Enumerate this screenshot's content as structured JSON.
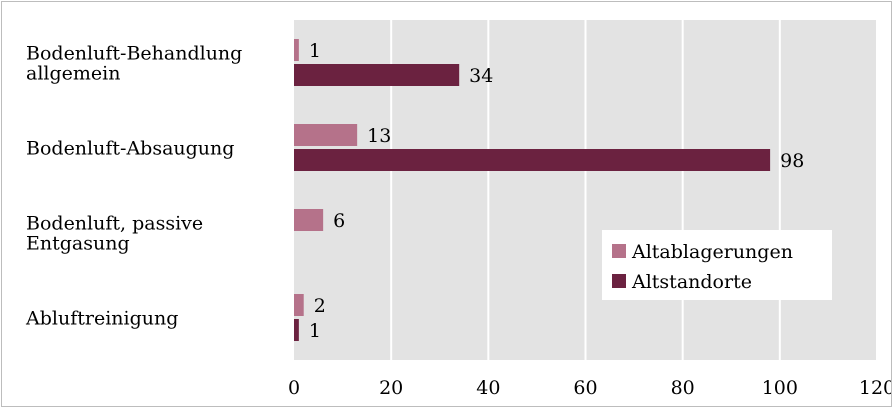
{
  "chart_data": {
    "type": "bar",
    "orientation": "horizontal",
    "categories": [
      [
        "Bodenluft-Behandlung",
        "allgemein"
      ],
      [
        "Bodenluft-Absaugung"
      ],
      [
        "Bodenluft, passive",
        "Entgasung"
      ],
      [
        "Abluftreinigung"
      ]
    ],
    "series": [
      {
        "name": "Altablagerungen",
        "color": "#b5728a",
        "values": [
          1,
          13,
          6,
          2
        ]
      },
      {
        "name": "Altstandorte",
        "color": "#6b2240",
        "values": [
          34,
          98,
          null,
          1
        ]
      }
    ],
    "xlim": [
      0,
      120
    ],
    "xticks": [
      0,
      20,
      40,
      60,
      80,
      100,
      120
    ],
    "grid": true,
    "legend_position": "bottom-right",
    "plot_background": "#e3e3e3"
  }
}
